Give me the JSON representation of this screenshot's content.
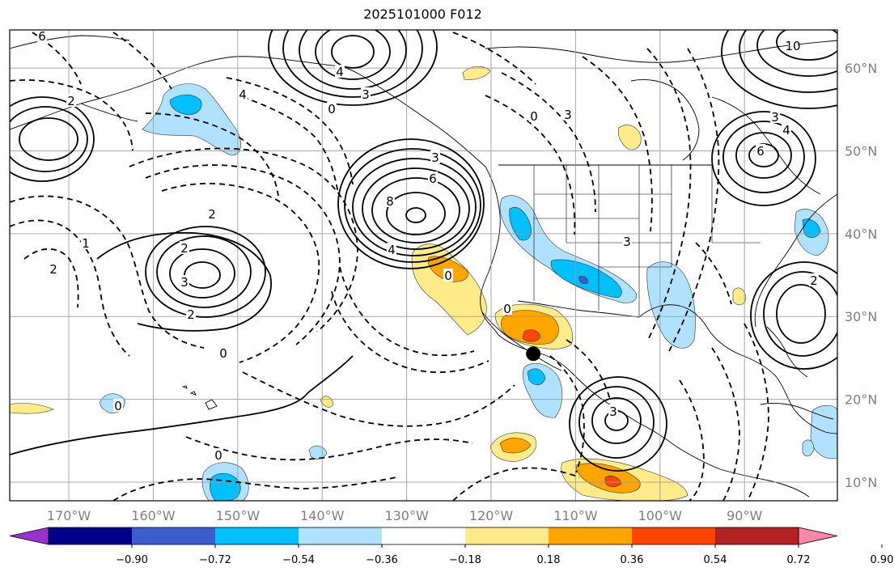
{
  "title": "2025101000 F012",
  "lon_ticks": [
    "170°W",
    "160°W",
    "150°W",
    "140°W",
    "130°W",
    "120°W",
    "110°W",
    "100°W",
    "90°W"
  ],
  "lat_ticks": [
    "10°N",
    "20°N",
    "30°N",
    "40°N",
    "50°N",
    "60°N"
  ],
  "colorbar": {
    "ticks": [
      "−0.90",
      "−0.72",
      "−0.54",
      "−0.36",
      "−0.18",
      "0.18",
      "0.36",
      "0.54",
      "0.72",
      "0.90"
    ],
    "colors": [
      "#9932cc",
      "#00008b",
      "#3a5fcd",
      "#00bfff",
      "#b0e2ff",
      "#ffffff",
      "#ffeb8a",
      "#ffa500",
      "#ff4500",
      "#b22222",
      "#ff88aa"
    ]
  },
  "contour_labels": [
    "6",
    "4",
    "3",
    "0",
    "6",
    "8",
    "4",
    "3",
    "2",
    "0",
    "3",
    "2",
    "4",
    "2",
    "3",
    "0",
    "6",
    "4",
    "3",
    "10",
    "3",
    "3",
    "0",
    "2",
    "1",
    "2",
    "0",
    "0",
    "0",
    "2"
  ],
  "marker": {
    "lon": -115,
    "lat": 25.5
  }
}
